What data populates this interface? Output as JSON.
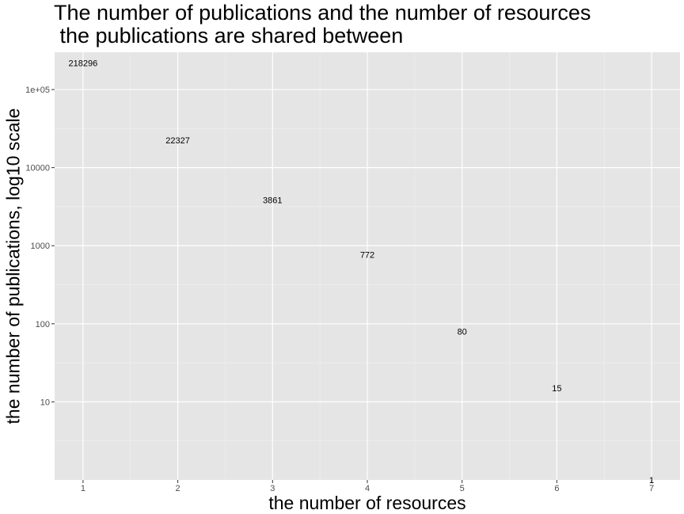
{
  "chart_data": {
    "type": "scatter",
    "title": "The number of publications and the number of resources\n the publications are shared between",
    "xlabel": "the number of resources",
    "ylabel": "the number of publications, log10 scale",
    "x": [
      1,
      2,
      3,
      4,
      5,
      6,
      7
    ],
    "values": [
      218296,
      22327,
      3861,
      772,
      80,
      15,
      1
    ],
    "point_labels": [
      "218296",
      "22327",
      "3861",
      "772",
      "80",
      "15",
      "1"
    ],
    "x_ticks": [
      1,
      2,
      3,
      4,
      5,
      6,
      7
    ],
    "x_tick_labels": [
      "1",
      "2",
      "3",
      "4",
      "5",
      "6",
      "7"
    ],
    "y_ticks": [
      10,
      100,
      1000,
      10000,
      100000
    ],
    "y_tick_labels": [
      "10",
      "100",
      "1000",
      "10000",
      "1e+05"
    ],
    "xlim": [
      0.7,
      7.3
    ],
    "ylim": [
      1,
      300000
    ],
    "y_scale": "log10",
    "grid": true,
    "legend": "none",
    "colors": {
      "panel_background": "#e5e5e5",
      "grid_major": "#ffffff",
      "grid_minor": "#f0f0f0",
      "tick_label": "#4d4d4d",
      "text": "#000000"
    }
  }
}
